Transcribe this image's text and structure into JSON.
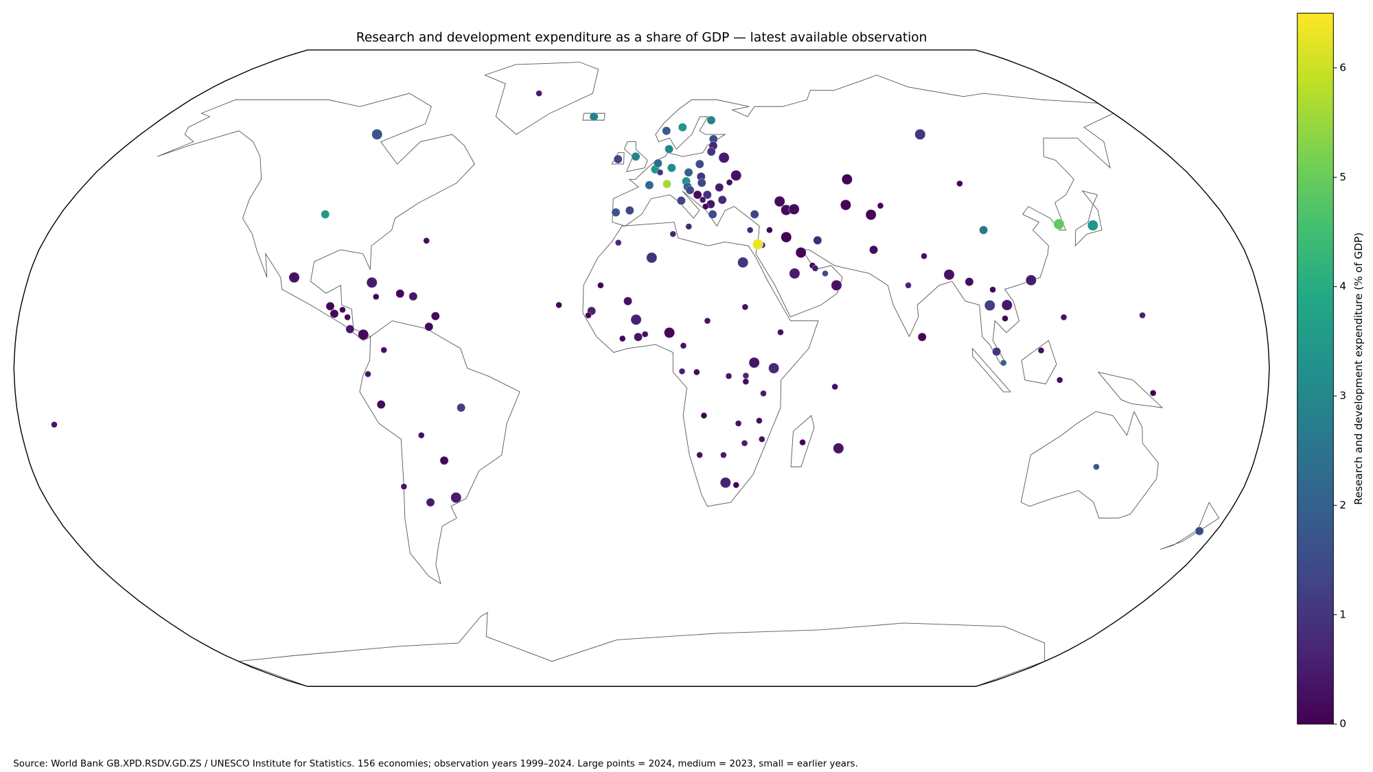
{
  "chart_data": {
    "type": "map",
    "title": "Research and development expenditure as a share of GDP — latest available observation",
    "colorbar_label": "Research and development expenditure (% of GDP)",
    "colormap": "viridis",
    "clim": [
      0,
      6.5
    ],
    "colorbar_ticks": [
      0,
      1,
      2,
      3,
      4,
      5,
      6
    ],
    "note": "Source: World Bank GB.XPD.RSDV.GD.ZS / UNESCO Institute for Statistics. 156 economies; observation years 1999–2024. Large points = 2024, medium = 2023, small = earlier years.",
    "points": [
      {
        "lon": -98,
        "lat": 39,
        "value": 3.5,
        "size": "medium"
      },
      {
        "lon": -95,
        "lat": 60,
        "value": 1.7,
        "size": "large"
      },
      {
        "lon": -42,
        "lat": 72,
        "value": 0.5,
        "size": "small"
      },
      {
        "lon": -18,
        "lat": 65,
        "value": 2.8,
        "size": "medium"
      },
      {
        "lon": -102,
        "lat": 23,
        "value": 0.3,
        "size": "large"
      },
      {
        "lon": -90.3,
        "lat": 15.7,
        "value": 0.03,
        "size": "medium"
      },
      {
        "lon": -88.9,
        "lat": 13.8,
        "value": 0.15,
        "size": "medium"
      },
      {
        "lon": -86.6,
        "lat": 14.8,
        "value": 0.05,
        "size": "small"
      },
      {
        "lon": -85,
        "lat": 12.9,
        "value": 0.1,
        "size": "small"
      },
      {
        "lon": -84,
        "lat": 9.9,
        "value": 0.4,
        "size": "medium"
      },
      {
        "lon": -80.1,
        "lat": 8.5,
        "value": 0.15,
        "size": "large"
      },
      {
        "lon": -79,
        "lat": 21.7,
        "value": 0.5,
        "size": "large"
      },
      {
        "lon": -77.3,
        "lat": 18.1,
        "value": 0.1,
        "size": "small"
      },
      {
        "lon": -70.4,
        "lat": 18.9,
        "value": 0.1,
        "size": "medium"
      },
      {
        "lon": -66.5,
        "lat": 18.2,
        "value": 0.4,
        "size": "medium"
      },
      {
        "lon": -61.3,
        "lat": 10.5,
        "value": 0.1,
        "size": "medium"
      },
      {
        "lon": -59.6,
        "lat": 13.2,
        "value": 0.2,
        "size": "medium"
      },
      {
        "lon": -64.8,
        "lat": 32.3,
        "value": 0.2,
        "size": "small"
      },
      {
        "lon": -74,
        "lat": 4.6,
        "value": 0.3,
        "size": "small"
      },
      {
        "lon": -78.5,
        "lat": -1.5,
        "value": 0.4,
        "size": "small"
      },
      {
        "lon": -75,
        "lat": -9.2,
        "value": 0.2,
        "size": "medium"
      },
      {
        "lon": -64,
        "lat": -17,
        "value": 0.3,
        "size": "small"
      },
      {
        "lon": -52,
        "lat": -10,
        "value": 1.2,
        "size": "medium"
      },
      {
        "lon": -58,
        "lat": -23.4,
        "value": 0.1,
        "size": "medium"
      },
      {
        "lon": -56,
        "lat": -32.8,
        "value": 0.5,
        "size": "large"
      },
      {
        "lon": -64,
        "lat": -34,
        "value": 0.5,
        "size": "medium"
      },
      {
        "lon": -71,
        "lat": -30,
        "value": 0.35,
        "size": "small"
      },
      {
        "lon": -170,
        "lat": -14.3,
        "value": 0.4,
        "size": "small"
      },
      {
        "lon": 144.8,
        "lat": 13.4,
        "value": 0.6,
        "size": "small"
      },
      {
        "lon": -24,
        "lat": 16,
        "value": 0.1,
        "size": "small"
      },
      {
        "lon": -14.5,
        "lat": 14.5,
        "value": 0.6,
        "size": "medium"
      },
      {
        "lon": -15.4,
        "lat": 13.4,
        "value": 0.1,
        "size": "small"
      },
      {
        "lon": -12,
        "lat": 21,
        "value": 0.02,
        "size": "small"
      },
      {
        "lon": -4,
        "lat": 17,
        "value": 0.3,
        "size": "medium"
      },
      {
        "lon": -1.6,
        "lat": 12.3,
        "value": 0.6,
        "size": "large"
      },
      {
        "lon": -5.5,
        "lat": 7.5,
        "value": 0.1,
        "size": "small"
      },
      {
        "lon": -1,
        "lat": 7.9,
        "value": 0.4,
        "size": "medium"
      },
      {
        "lon": 1,
        "lat": 8.6,
        "value": 0.3,
        "size": "small"
      },
      {
        "lon": 8,
        "lat": 9,
        "value": 0.1,
        "size": "large"
      },
      {
        "lon": -7,
        "lat": 31.8,
        "value": 0.7,
        "size": "small"
      },
      {
        "lon": 3,
        "lat": 28,
        "value": 0.9,
        "size": "large"
      },
      {
        "lon": 9.5,
        "lat": 34,
        "value": 0.7,
        "size": "small"
      },
      {
        "lon": 14.4,
        "lat": 35.9,
        "value": 0.7,
        "size": "small"
      },
      {
        "lon": 30,
        "lat": 26.8,
        "value": 1.0,
        "size": "large"
      },
      {
        "lon": 30,
        "lat": 15.5,
        "value": 0.3,
        "size": "small"
      },
      {
        "lon": 19,
        "lat": 12,
        "value": 0.3,
        "size": "small"
      },
      {
        "lon": 12,
        "lat": 5.7,
        "value": 0.3,
        "size": "small"
      },
      {
        "lon": 11.6,
        "lat": -0.8,
        "value": 0.6,
        "size": "small"
      },
      {
        "lon": 15.8,
        "lat": -1,
        "value": 0.1,
        "size": "small"
      },
      {
        "lon": 25,
        "lat": -2,
        "value": 0.4,
        "size": "small"
      },
      {
        "lon": 32.3,
        "lat": 1.4,
        "value": 0.4,
        "size": "large"
      },
      {
        "lon": 37.9,
        "lat": 0,
        "value": 0.8,
        "size": "large"
      },
      {
        "lon": 40,
        "lat": 9.1,
        "value": 0.3,
        "size": "small"
      },
      {
        "lon": 29.9,
        "lat": -1.9,
        "value": 0.7,
        "size": "small"
      },
      {
        "lon": 29.9,
        "lat": -3.4,
        "value": 0.2,
        "size": "small"
      },
      {
        "lon": 35,
        "lat": -6.4,
        "value": 0.5,
        "size": "small"
      },
      {
        "lon": 18,
        "lat": -12,
        "value": 0.03,
        "size": "small"
      },
      {
        "lon": 28,
        "lat": -14,
        "value": 0.3,
        "size": "small"
      },
      {
        "lon": 34,
        "lat": -13.3,
        "value": 0.3,
        "size": "small"
      },
      {
        "lon": 35,
        "lat": -18,
        "value": 0.3,
        "size": "small"
      },
      {
        "lon": 30,
        "lat": -19,
        "value": 0.5,
        "size": "small"
      },
      {
        "lon": 17,
        "lat": -22,
        "value": 0.3,
        "size": "small"
      },
      {
        "lon": 24,
        "lat": -22,
        "value": 0.5,
        "size": "small"
      },
      {
        "lon": 25,
        "lat": -29,
        "value": 0.6,
        "size": "large"
      },
      {
        "lon": 28.2,
        "lat": -29.6,
        "value": 0.05,
        "size": "small"
      },
      {
        "lon": 46.9,
        "lat": -18.8,
        "value": 0.01,
        "size": "small"
      },
      {
        "lon": 57.5,
        "lat": -20.3,
        "value": 0.4,
        "size": "large"
      },
      {
        "lon": 55.5,
        "lat": -4.7,
        "value": 0.3,
        "size": "small"
      },
      {
        "lon": -8,
        "lat": 39.5,
        "value": 1.7,
        "size": "medium"
      },
      {
        "lon": -3.7,
        "lat": 40,
        "value": 1.4,
        "size": "medium"
      },
      {
        "lon": 2.5,
        "lat": 46.5,
        "value": 2.2,
        "size": "medium"
      },
      {
        "lon": -8,
        "lat": 53.3,
        "value": 1.3,
        "size": "medium"
      },
      {
        "lon": -2,
        "lat": 54,
        "value": 2.8,
        "size": "medium"
      },
      {
        "lon": 4.5,
        "lat": 50.6,
        "value": 3.4,
        "size": "medium"
      },
      {
        "lon": 5.5,
        "lat": 52.2,
        "value": 2.3,
        "size": "medium"
      },
      {
        "lon": 6.1,
        "lat": 49.8,
        "value": 1.0,
        "size": "small"
      },
      {
        "lon": 10,
        "lat": 51,
        "value": 3.1,
        "size": "medium"
      },
      {
        "lon": 8.2,
        "lat": 46.8,
        "value": 5.6,
        "size": "medium"
      },
      {
        "lon": 14.5,
        "lat": 47.5,
        "value": 3.2,
        "size": "medium"
      },
      {
        "lon": 12.5,
        "lat": 42.5,
        "value": 1.3,
        "size": "medium"
      },
      {
        "lon": 9.5,
        "lat": 56,
        "value": 3.0,
        "size": "medium"
      },
      {
        "lon": 9,
        "lat": 61,
        "value": 1.9,
        "size": "medium"
      },
      {
        "lon": 15,
        "lat": 62,
        "value": 3.4,
        "size": "medium"
      },
      {
        "lon": 26,
        "lat": 64,
        "value": 2.9,
        "size": "medium"
      },
      {
        "lon": 25.5,
        "lat": 58.7,
        "value": 1.6,
        "size": "medium"
      },
      {
        "lon": 25,
        "lat": 56.9,
        "value": 0.7,
        "size": "medium"
      },
      {
        "lon": 24,
        "lat": 55.3,
        "value": 1.0,
        "size": "medium"
      },
      {
        "lon": 19.5,
        "lat": 52,
        "value": 1.5,
        "size": "medium"
      },
      {
        "lon": 15.5,
        "lat": 49.8,
        "value": 2.0,
        "size": "medium"
      },
      {
        "lon": 19.5,
        "lat": 48.7,
        "value": 1.0,
        "size": "medium"
      },
      {
        "lon": 19.5,
        "lat": 47.1,
        "value": 1.4,
        "size": "medium"
      },
      {
        "lon": 14.8,
        "lat": 46.1,
        "value": 2.1,
        "size": "medium"
      },
      {
        "lon": 15.5,
        "lat": 45.2,
        "value": 1.4,
        "size": "medium"
      },
      {
        "lon": 17.8,
        "lat": 44,
        "value": 0.2,
        "size": "medium"
      },
      {
        "lon": 20.9,
        "lat": 44,
        "value": 0.9,
        "size": "medium"
      },
      {
        "lon": 19.3,
        "lat": 42.7,
        "value": 0.4,
        "size": "small"
      },
      {
        "lon": 21.7,
        "lat": 41.6,
        "value": 0.4,
        "size": "medium"
      },
      {
        "lon": 20,
        "lat": 41,
        "value": 0.1,
        "size": "small"
      },
      {
        "lon": 22,
        "lat": 39,
        "value": 1.5,
        "size": "medium"
      },
      {
        "lon": 25.5,
        "lat": 42.7,
        "value": 0.8,
        "size": "medium"
      },
      {
        "lon": 25,
        "lat": 45.9,
        "value": 0.5,
        "size": "medium"
      },
      {
        "lon": 28.5,
        "lat": 47.2,
        "value": 0.2,
        "size": "small"
      },
      {
        "lon": 31,
        "lat": 49,
        "value": 0.3,
        "size": "large"
      },
      {
        "lon": 28,
        "lat": 53.7,
        "value": 0.5,
        "size": "large"
      },
      {
        "lon": 100,
        "lat": 60,
        "value": 1.0,
        "size": "large"
      },
      {
        "lon": 33,
        "lat": 35,
        "value": 0.8,
        "size": "small"
      },
      {
        "lon": 35,
        "lat": 39,
        "value": 1.3,
        "size": "medium"
      },
      {
        "lon": 43.5,
        "lat": 42.3,
        "value": 0.2,
        "size": "large"
      },
      {
        "lon": 45,
        "lat": 40.1,
        "value": 0.2,
        "size": "large"
      },
      {
        "lon": 47.5,
        "lat": 40.3,
        "value": 0.2,
        "size": "large"
      },
      {
        "lon": 67,
        "lat": 48,
        "value": 0.1,
        "size": "large"
      },
      {
        "lon": 64,
        "lat": 41.4,
        "value": 0.1,
        "size": "large"
      },
      {
        "lon": 74.8,
        "lat": 41.2,
        "value": 0.1,
        "size": "small"
      },
      {
        "lon": 71,
        "lat": 38.9,
        "value": 0.1,
        "size": "large"
      },
      {
        "lon": 103,
        "lat": 46.9,
        "value": 0.1,
        "size": "small"
      },
      {
        "lon": 53,
        "lat": 32.4,
        "value": 0.8,
        "size": "medium"
      },
      {
        "lon": 43.7,
        "lat": 33.2,
        "value": 0.04,
        "size": "large"
      },
      {
        "lon": 38.9,
        "lat": 35,
        "value": 0.02,
        "size": "small"
      },
      {
        "lon": 36.2,
        "lat": 31.2,
        "value": 0.7,
        "size": "small"
      },
      {
        "lon": 34.9,
        "lat": 31.4,
        "value": 6.3,
        "size": "large"
      },
      {
        "lon": 47.5,
        "lat": 29.3,
        "value": 0.1,
        "size": "large"
      },
      {
        "lon": 45,
        "lat": 24,
        "value": 0.5,
        "size": "large"
      },
      {
        "lon": 50.5,
        "lat": 26,
        "value": 0.1,
        "size": "small"
      },
      {
        "lon": 51.2,
        "lat": 25.3,
        "value": 0.5,
        "size": "small"
      },
      {
        "lon": 54,
        "lat": 24,
        "value": 1.5,
        "size": "small"
      },
      {
        "lon": 57,
        "lat": 21,
        "value": 0.3,
        "size": "large"
      },
      {
        "lon": 69.3,
        "lat": 30,
        "value": 0.2,
        "size": "medium"
      },
      {
        "lon": 78,
        "lat": 21,
        "value": 0.7,
        "size": "small"
      },
      {
        "lon": 84,
        "lat": 28.4,
        "value": 0.3,
        "size": "small"
      },
      {
        "lon": 90.4,
        "lat": 23.7,
        "value": 0.3,
        "size": "large"
      },
      {
        "lon": 80.7,
        "lat": 7.9,
        "value": 0.1,
        "size": "medium"
      },
      {
        "lon": 96,
        "lat": 21.9,
        "value": 0.2,
        "size": "medium"
      },
      {
        "lon": 101,
        "lat": 15.9,
        "value": 1.2,
        "size": "large"
      },
      {
        "lon": 102.5,
        "lat": 19.9,
        "value": 0.1,
        "size": "small"
      },
      {
        "lon": 106,
        "lat": 16,
        "value": 0.4,
        "size": "large"
      },
      {
        "lon": 105,
        "lat": 12.6,
        "value": 0.1,
        "size": "small"
      },
      {
        "lon": 104,
        "lat": 35,
        "value": 2.6,
        "size": "medium"
      },
      {
        "lon": 114.2,
        "lat": 22.3,
        "value": 0.5,
        "size": "large"
      },
      {
        "lon": 127.8,
        "lat": 36.5,
        "value": 4.9,
        "size": "large"
      },
      {
        "lon": 138,
        "lat": 36.2,
        "value": 3.4,
        "size": "large"
      },
      {
        "lon": 122,
        "lat": 12.9,
        "value": 0.3,
        "size": "small"
      },
      {
        "lon": 101.9,
        "lat": 4.2,
        "value": 1.0,
        "size": "medium"
      },
      {
        "lon": 103.8,
        "lat": 1.35,
        "value": 2.0,
        "size": "small"
      },
      {
        "lon": 114.7,
        "lat": 4.5,
        "value": 0.3,
        "size": "small"
      },
      {
        "lon": 120,
        "lat": -3,
        "value": 0.3,
        "size": "small"
      },
      {
        "lon": 147,
        "lat": -6.3,
        "value": 0.03,
        "size": "small"
      },
      {
        "lon": 134,
        "lat": -25,
        "value": 1.7,
        "size": "small"
      },
      {
        "lon": 174.8,
        "lat": -41.3,
        "value": 1.5,
        "size": "medium"
      }
    ]
  }
}
